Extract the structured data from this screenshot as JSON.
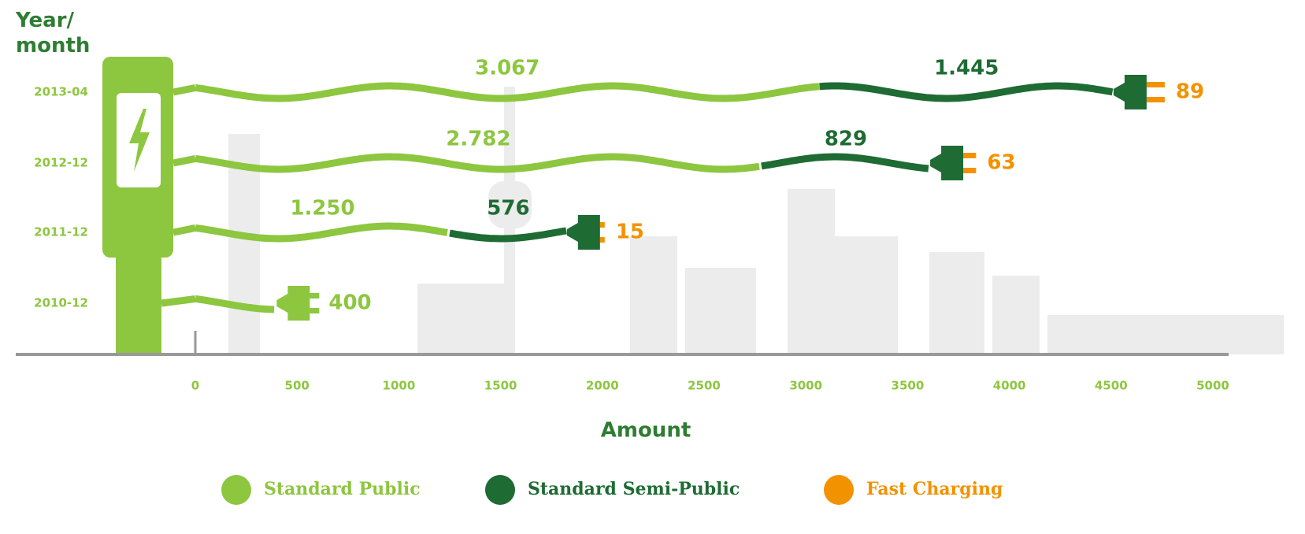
{
  "chart_data": {
    "type": "bar",
    "orientation": "horizontal",
    "stacked": true,
    "y_axis_title": "Year/\nmonth",
    "x_axis_title": "Amount",
    "categories": [
      "2013-04",
      "2012-12",
      "2011-12",
      "2010-12"
    ],
    "series": [
      {
        "name": "Standard Public",
        "color": "#8dc63f",
        "values": [
          3067,
          2782,
          1250,
          400
        ],
        "value_labels": [
          "3.067",
          "2.782",
          "1.250",
          "400"
        ]
      },
      {
        "name": "Standard Semi-Public",
        "color": "#1e6b34",
        "values": [
          1445,
          829,
          576,
          null
        ],
        "value_labels": [
          "1.445",
          "829",
          "576",
          null
        ]
      },
      {
        "name": "Fast Charging",
        "color": "#f39200",
        "values": [
          89,
          63,
          15,
          null
        ],
        "value_labels": [
          "89",
          "63",
          "15",
          null
        ]
      }
    ],
    "xlim": [
      0,
      5000
    ],
    "xticks": [
      0,
      500,
      1000,
      1500,
      2000,
      2500,
      3000,
      3500,
      4000,
      4500,
      5000
    ]
  }
}
